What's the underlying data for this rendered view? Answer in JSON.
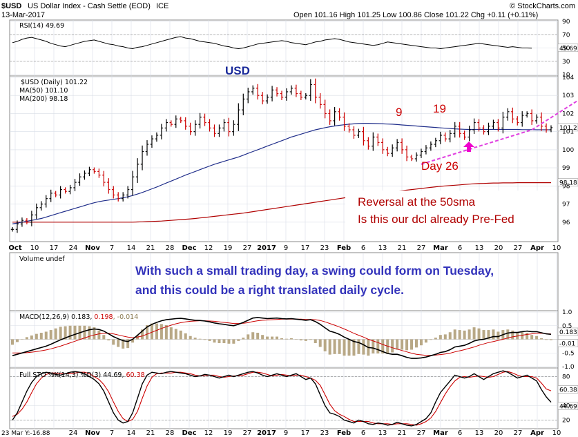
{
  "header": {
    "symbol": "$USD",
    "name": "US Dollar Index - Cash Settle (EOD)",
    "exchange": "ICE",
    "date": "13-Mar-2017",
    "ohlc": "Open 101.16 High 101.25 Low 100.86 Close 101.22 Chg +0.11 (+0.11%)",
    "watermark": "© StockCharts.com"
  },
  "colors": {
    "price_up": "#000000",
    "price_down": "#cc0000",
    "ma50": "#1f2d8a",
    "ma200": "#b00000",
    "trendline": "#e040e0",
    "annotation_red": "#cc0000",
    "annotation_blue": "#3333bb",
    "volume_bars": "#b8a886",
    "sto_fast": "#000000",
    "sto_slow": "#cc0000"
  },
  "x_axis": {
    "labels": [
      "Oct",
      "10",
      "17",
      "24",
      "Nov",
      "7",
      "14",
      "21",
      "28",
      "Dec",
      "12",
      "19",
      "27",
      "2017",
      "9",
      "17",
      "23",
      "Feb",
      "6",
      "13",
      "21",
      "27",
      "Mar",
      "6",
      "13",
      "20",
      "27",
      "Apr",
      "10"
    ],
    "bold": [
      "Oct",
      "Nov",
      "Dec",
      "2017",
      "Feb",
      "Mar",
      "Apr"
    ],
    "bottom_labels": [
      "23 Mar Y:-16.88",
      "24",
      "Nov",
      "7",
      "14",
      "21",
      "28",
      "Dec",
      "12",
      "19",
      "27",
      "2017",
      "9",
      "17",
      "23",
      "Feb",
      "6",
      "13",
      "21",
      "27",
      "Mar",
      "6",
      "13",
      "20",
      "27",
      "Apr",
      "10"
    ]
  },
  "chart_data": [
    {
      "type": "line",
      "panel": "rsi",
      "title": "RSI(14) 49.69",
      "ylim": [
        10,
        90
      ],
      "yticks": [
        "90",
        "70",
        "50",
        "30",
        "10"
      ],
      "last_value_label": "49.69",
      "values": [
        58,
        60,
        63,
        65,
        66,
        64,
        62,
        60,
        57,
        55,
        53,
        52,
        54,
        56,
        58,
        60,
        61,
        62,
        60,
        58,
        56,
        55,
        53,
        52,
        50,
        49,
        51,
        52,
        54,
        56,
        58,
        60,
        62,
        64,
        66,
        67,
        65,
        64,
        62,
        60,
        59,
        58,
        57,
        55,
        53,
        52,
        50,
        49,
        50,
        52,
        54,
        56,
        57,
        58,
        59,
        60,
        61,
        60,
        58,
        57,
        56,
        55,
        57,
        59,
        60,
        62,
        63,
        64,
        63,
        61,
        59,
        58,
        57,
        56,
        55,
        54,
        55,
        57,
        59,
        58,
        57,
        56,
        55,
        54,
        53,
        52,
        51,
        50,
        50,
        49,
        50,
        51,
        52,
        53,
        54,
        55,
        56,
        57,
        56,
        55,
        54,
        53,
        52,
        51,
        52,
        51,
        50,
        50,
        49.69
      ]
    },
    {
      "type": "bar",
      "panel": "price",
      "title": "$USD (Daily) 101.22",
      "ylim": [
        95,
        104
      ],
      "yticks": [
        "104",
        "103",
        "102",
        "101",
        "100",
        "99",
        "98",
        "97",
        "96"
      ],
      "last_price_label": "101.2",
      "ma200_label": "98.18",
      "legend": [
        "MA(50) 101.10",
        "MA(200) 98.18"
      ],
      "close": [
        95.6,
        95.9,
        96.1,
        96.0,
        96.4,
        96.8,
        97.0,
        97.3,
        97.6,
        97.5,
        97.8,
        97.7,
        97.9,
        98.2,
        98.5,
        98.7,
        98.9,
        98.8,
        98.6,
        98.2,
        97.8,
        97.5,
        97.3,
        97.5,
        97.8,
        98.5,
        99.2,
        99.9,
        100.3,
        100.6,
        100.8,
        101.2,
        101.5,
        101.4,
        101.7,
        101.6,
        101.3,
        101.0,
        101.4,
        101.8,
        101.5,
        101.2,
        100.9,
        101.2,
        101.5,
        101.0,
        101.4,
        102.2,
        102.8,
        103.2,
        103.4,
        103.0,
        102.7,
        102.9,
        103.3,
        103.1,
        102.9,
        103.2,
        103.4,
        103.1,
        102.9,
        103.0,
        103.6,
        102.9,
        102.5,
        102.0,
        101.6,
        102.1,
        101.8,
        101.3,
        101.1,
        100.8,
        101.0,
        100.5,
        100.2,
        100.7,
        100.4,
        100.0,
        99.8,
        100.1,
        100.4,
        100.0,
        99.6,
        99.5,
        99.7,
        99.9,
        100.1,
        100.3,
        100.5,
        100.8,
        100.6,
        100.9,
        101.3,
        100.9,
        100.7,
        101.1,
        101.5,
        101.2,
        101.0,
        101.3,
        101.5,
        101.2,
        101.8,
        102.1,
        101.7,
        101.5,
        101.9,
        102.0,
        101.6,
        101.8,
        101.3,
        101.1,
        101.22
      ],
      "ma50": [
        95.9,
        95.95,
        96.0,
        96.05,
        96.1,
        96.15,
        96.2,
        96.28,
        96.36,
        96.44,
        96.52,
        96.6,
        96.68,
        96.76,
        96.84,
        96.92,
        97.0,
        97.07,
        97.13,
        97.18,
        97.22,
        97.26,
        97.3,
        97.35,
        97.4,
        97.47,
        97.55,
        97.64,
        97.74,
        97.84,
        97.94,
        98.05,
        98.16,
        98.27,
        98.38,
        98.49,
        98.6,
        98.7,
        98.8,
        98.9,
        99.0,
        99.1,
        99.2,
        99.28,
        99.36,
        99.44,
        99.52,
        99.6,
        99.7,
        99.8,
        99.9,
        100.0,
        100.1,
        100.2,
        100.3,
        100.4,
        100.5,
        100.6,
        100.7,
        100.78,
        100.86,
        100.94,
        101.02,
        101.1,
        101.16,
        101.22,
        101.27,
        101.31,
        101.35,
        101.38,
        101.41,
        101.43,
        101.45,
        101.46,
        101.46,
        101.45,
        101.44,
        101.43,
        101.42,
        101.41,
        101.39,
        101.37,
        101.35,
        101.33,
        101.31,
        101.29,
        101.27,
        101.25,
        101.23,
        101.21,
        101.19,
        101.17,
        101.15,
        101.14,
        101.13,
        101.12,
        101.12,
        101.12,
        101.12,
        101.12,
        101.12,
        101.12,
        101.12,
        101.12,
        101.12,
        101.12,
        101.11,
        101.11,
        101.11,
        101.1,
        101.1,
        101.1,
        101.1
      ],
      "ma200": [
        96.0,
        96.0,
        96.0,
        96.0,
        96.0,
        96.0,
        96.0,
        96.0,
        96.0,
        96.0,
        96.0,
        96.0,
        96.0,
        96.0,
        96.0,
        96.0,
        96.0,
        96.0,
        96.0,
        96.0,
        96.0,
        96.0,
        96.0,
        96.0,
        96.0,
        96.0,
        96.01,
        96.02,
        96.03,
        96.04,
        96.05,
        96.06,
        96.08,
        96.1,
        96.12,
        96.14,
        96.16,
        96.18,
        96.2,
        96.23,
        96.26,
        96.29,
        96.32,
        96.35,
        96.38,
        96.41,
        96.44,
        96.47,
        96.5,
        96.54,
        96.58,
        96.62,
        96.66,
        96.7,
        96.74,
        96.78,
        96.82,
        96.86,
        96.9,
        96.94,
        96.98,
        97.02,
        97.06,
        97.1,
        97.14,
        97.18,
        97.22,
        97.26,
        97.3,
        97.34,
        97.38,
        97.42,
        97.46,
        97.5,
        97.53,
        97.56,
        97.59,
        97.62,
        97.65,
        97.68,
        97.71,
        97.74,
        97.77,
        97.8,
        97.83,
        97.86,
        97.89,
        97.92,
        97.95,
        97.98,
        98.0,
        98.02,
        98.04,
        98.06,
        98.08,
        98.1,
        98.12,
        98.13,
        98.14,
        98.15,
        98.16,
        98.16,
        98.17,
        98.17,
        98.17,
        98.18,
        98.18,
        98.18,
        98.18,
        98.18,
        98.18,
        98.18,
        98.18
      ],
      "trendline_y": [
        99.2,
        101.1,
        102.7
      ],
      "annotations": {
        "label_usd": "USD",
        "label_9": "9",
        "label_19": "19",
        "label_day26": "Day 26",
        "box_line1": "Reversal at the 50sma",
        "box_line2": "Is this our dcl already Pre-Fed"
      }
    },
    {
      "type": "bar",
      "panel": "volume",
      "title": "Volume undef",
      "annotation_line1": "With such a small trading day, a swing could form on  Tuesday,",
      "annotation_line2": "and this could be a right translated daily cycle."
    },
    {
      "type": "line",
      "panel": "macd",
      "title": "MACD(12,26,9) 0.183, 0.198, -0.014",
      "title_parts": [
        "MACD(12,26,9) 0.183, ",
        "0.198",
        ", -0.014"
      ],
      "ylim": [
        -1.0,
        1.0
      ],
      "yticks": [
        "1.0",
        "0.5",
        "-0.5",
        "-1.0"
      ],
      "value_labels": [
        "0.183",
        "-0.01"
      ],
      "macd": [
        -0.6,
        -0.55,
        -0.5,
        -0.45,
        -0.4,
        -0.35,
        -0.3,
        -0.25,
        -0.18,
        -0.1,
        -0.02,
        0.05,
        0.12,
        0.18,
        0.24,
        0.3,
        0.35,
        0.38,
        0.36,
        0.3,
        0.2,
        0.1,
        0.02,
        -0.05,
        -0.08,
        0.0,
        0.15,
        0.3,
        0.45,
        0.55,
        0.62,
        0.68,
        0.72,
        0.74,
        0.76,
        0.77,
        0.75,
        0.72,
        0.7,
        0.69,
        0.67,
        0.64,
        0.6,
        0.57,
        0.55,
        0.52,
        0.5,
        0.55,
        0.62,
        0.7,
        0.78,
        0.8,
        0.78,
        0.76,
        0.77,
        0.78,
        0.76,
        0.75,
        0.76,
        0.74,
        0.72,
        0.7,
        0.72,
        0.65,
        0.55,
        0.42,
        0.3,
        0.25,
        0.18,
        0.08,
        0.0,
        -0.08,
        -0.12,
        -0.2,
        -0.3,
        -0.32,
        -0.38,
        -0.45,
        -0.52,
        -0.55,
        -0.55,
        -0.6,
        -0.66,
        -0.7,
        -0.7,
        -0.68,
        -0.65,
        -0.6,
        -0.55,
        -0.48,
        -0.45,
        -0.38,
        -0.28,
        -0.25,
        -0.22,
        -0.15,
        -0.06,
        -0.02,
        0.0,
        0.05,
        0.1,
        0.1,
        0.17,
        0.23,
        0.25,
        0.25,
        0.28,
        0.3,
        0.28,
        0.28,
        0.24,
        0.2,
        0.183
      ],
      "signal": [
        -0.5,
        -0.5,
        -0.5,
        -0.49,
        -0.47,
        -0.45,
        -0.42,
        -0.39,
        -0.35,
        -0.3,
        -0.25,
        -0.19,
        -0.13,
        -0.07,
        -0.01,
        0.05,
        0.11,
        0.16,
        0.2,
        0.22,
        0.22,
        0.2,
        0.16,
        0.12,
        0.08,
        0.06,
        0.08,
        0.12,
        0.19,
        0.26,
        0.33,
        0.4,
        0.46,
        0.52,
        0.57,
        0.61,
        0.64,
        0.66,
        0.67,
        0.68,
        0.68,
        0.67,
        0.66,
        0.64,
        0.62,
        0.6,
        0.58,
        0.58,
        0.59,
        0.61,
        0.65,
        0.68,
        0.7,
        0.71,
        0.72,
        0.73,
        0.74,
        0.74,
        0.74,
        0.74,
        0.74,
        0.73,
        0.73,
        0.72,
        0.69,
        0.64,
        0.58,
        0.52,
        0.45,
        0.38,
        0.3,
        0.22,
        0.15,
        0.08,
        0.0,
        -0.06,
        -0.12,
        -0.19,
        -0.25,
        -0.31,
        -0.36,
        -0.41,
        -0.46,
        -0.51,
        -0.55,
        -0.57,
        -0.59,
        -0.59,
        -0.58,
        -0.56,
        -0.54,
        -0.51,
        -0.46,
        -0.42,
        -0.38,
        -0.33,
        -0.28,
        -0.22,
        -0.17,
        -0.12,
        -0.08,
        -0.04,
        0.0,
        0.05,
        0.09,
        0.12,
        0.15,
        0.18,
        0.2,
        0.22,
        0.22,
        0.21,
        0.198
      ]
    },
    {
      "type": "line",
      "panel": "sto",
      "title": "Full STO %K(14,3) %D(3) 44.69, 60.38",
      "title_parts": [
        "Full STO %K(14,3) %D(3) 44.69, ",
        "60.38"
      ],
      "ylim": [
        10,
        90
      ],
      "yticks": [
        "80",
        "40",
        "20"
      ],
      "value_labels": [
        "60.38",
        "44.69"
      ],
      "k": [
        20,
        30,
        45,
        60,
        72,
        80,
        84,
        86,
        85,
        83,
        82,
        84,
        86,
        87,
        86,
        84,
        80,
        76,
        70,
        60,
        45,
        30,
        20,
        16,
        18,
        30,
        50,
        70,
        82,
        86,
        85,
        84,
        86,
        87,
        86,
        85,
        84,
        82,
        80,
        81,
        83,
        82,
        80,
        78,
        80,
        82,
        80,
        82,
        84,
        86,
        87,
        85,
        82,
        80,
        82,
        84,
        82,
        80,
        82,
        84,
        80,
        76,
        78,
        70,
        55,
        40,
        30,
        28,
        25,
        20,
        18,
        16,
        20,
        18,
        15,
        14,
        16,
        15,
        13,
        14,
        17,
        15,
        13,
        12,
        14,
        18,
        22,
        30,
        45,
        58,
        66,
        74,
        82,
        80,
        78,
        80,
        84,
        80,
        76,
        80,
        84,
        86,
        88,
        86,
        82,
        78,
        80,
        82,
        78,
        74,
        62,
        52,
        44.69
      ],
      "d": [
        25,
        28,
        35,
        45,
        58,
        70,
        78,
        83,
        85,
        85,
        84,
        84,
        84,
        85,
        86,
        86,
        84,
        80,
        76,
        69,
        59,
        45,
        32,
        22,
        18,
        21,
        32,
        50,
        67,
        79,
        84,
        85,
        85,
        85,
        86,
        86,
        85,
        84,
        82,
        81,
        81,
        82,
        82,
        80,
        79,
        80,
        81,
        81,
        82,
        84,
        86,
        86,
        85,
        83,
        81,
        82,
        83,
        82,
        81,
        82,
        82,
        80,
        78,
        75,
        68,
        55,
        42,
        33,
        28,
        25,
        21,
        18,
        18,
        18,
        18,
        16,
        15,
        15,
        15,
        14,
        15,
        15,
        15,
        14,
        13,
        15,
        18,
        23,
        32,
        44,
        56,
        66,
        74,
        79,
        80,
        79,
        80,
        81,
        80,
        79,
        80,
        83,
        86,
        87,
        85,
        82,
        80,
        80,
        80,
        78,
        71,
        63,
        60.38
      ]
    }
  ]
}
